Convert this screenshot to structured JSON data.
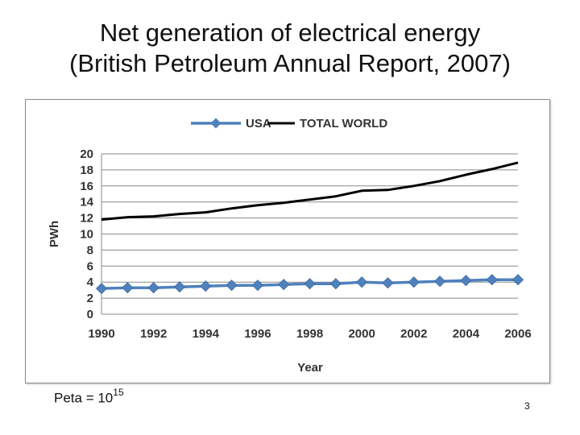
{
  "slide": {
    "title_line1": "Net generation of electrical energy",
    "title_line2": "(British Petroleum Annual Report, 2007)",
    "footnote_base": "Peta = 10",
    "footnote_exp": "15",
    "page_number": "3"
  },
  "chart_data": {
    "type": "line",
    "title": "",
    "xlabel": "Year",
    "ylabel": "PWh",
    "xlim": [
      1990,
      2006
    ],
    "ylim": [
      0,
      20
    ],
    "x_ticks": [
      1990,
      1992,
      1994,
      1996,
      1998,
      2000,
      2002,
      2004,
      2006
    ],
    "y_ticks": [
      0,
      2,
      4,
      6,
      8,
      10,
      12,
      14,
      16,
      18,
      20
    ],
    "grid": true,
    "legend_position": "top",
    "x": [
      1990,
      1991,
      1992,
      1993,
      1994,
      1995,
      1996,
      1997,
      1998,
      1999,
      2000,
      2001,
      2002,
      2003,
      2004,
      2005,
      2006
    ],
    "series": [
      {
        "name": "USA",
        "color": "#4f81bd",
        "marker": "diamond",
        "values": [
          3.2,
          3.3,
          3.3,
          3.4,
          3.5,
          3.6,
          3.6,
          3.7,
          3.8,
          3.8,
          4.0,
          3.9,
          4.0,
          4.1,
          4.2,
          4.3,
          4.3
        ]
      },
      {
        "name": "TOTAL WORLD",
        "color": "#000000",
        "marker": "none",
        "values": [
          11.8,
          12.1,
          12.2,
          12.5,
          12.7,
          13.2,
          13.6,
          13.9,
          14.3,
          14.7,
          15.4,
          15.5,
          16.0,
          16.6,
          17.4,
          18.1,
          18.9
        ]
      }
    ]
  }
}
